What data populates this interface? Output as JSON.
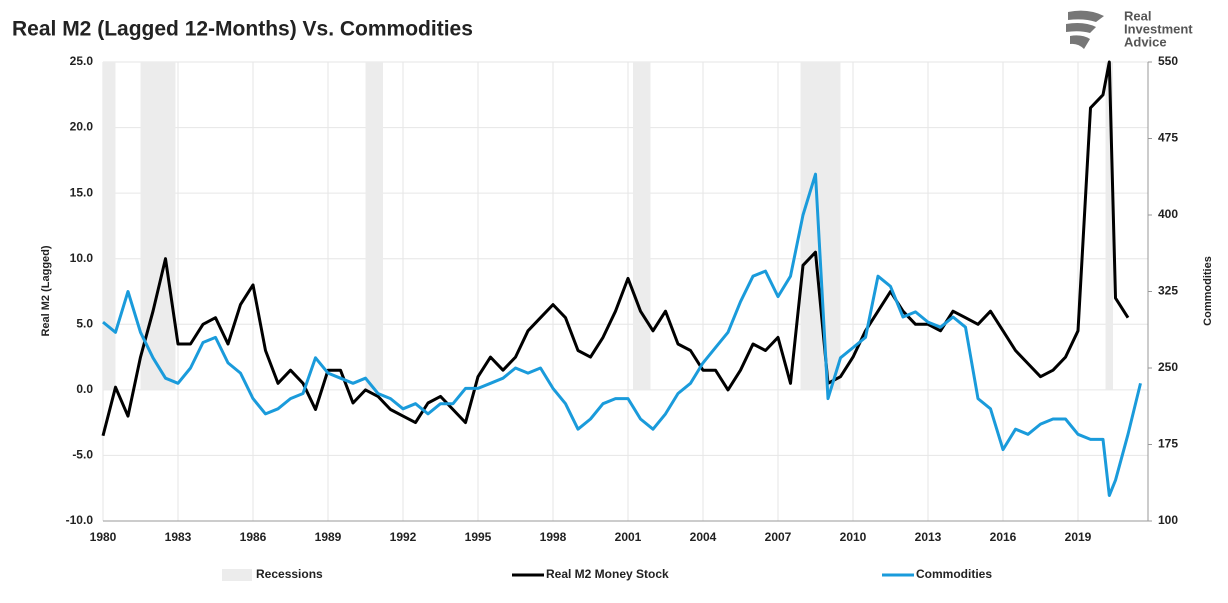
{
  "chart_data": {
    "type": "line",
    "title": "Real M2 (Lagged 12-Months) Vs. Commodities",
    "logo": [
      "Real",
      "Investment",
      "Advice"
    ],
    "ylabel": "Real M2 (Lagged)",
    "y2label": "Commodities",
    "x": [
      1980,
      1980.5,
      1981,
      1981.5,
      1982,
      1982.5,
      1983,
      1983.5,
      1984,
      1984.5,
      1985,
      1985.5,
      1986,
      1986.5,
      1987,
      1987.5,
      1988,
      1988.5,
      1989,
      1989.5,
      1990,
      1990.5,
      1991,
      1991.5,
      1992,
      1992.5,
      1993,
      1993.5,
      1994,
      1994.5,
      1995,
      1995.5,
      1996,
      1996.5,
      1997,
      1997.5,
      1998,
      1998.5,
      1999,
      1999.5,
      2000,
      2000.5,
      2001,
      2001.5,
      2002,
      2002.5,
      2003,
      2003.5,
      2004,
      2004.5,
      2005,
      2005.5,
      2006,
      2006.5,
      2007,
      2007.5,
      2008,
      2008.5,
      2009,
      2009.5,
      2010,
      2010.5,
      2011,
      2011.5,
      2012,
      2012.5,
      2013,
      2013.5,
      2014,
      2014.5,
      2015,
      2015.5,
      2016,
      2016.5,
      2017,
      2017.5,
      2018,
      2018.5,
      2019,
      2019.5,
      2020,
      2020.25,
      2020.5,
      2021,
      2021.5
    ],
    "series": [
      {
        "name": "Real M2 Money Stock",
        "color": "#000000",
        "values": [
          -3.5,
          0.2,
          -2,
          2.5,
          6,
          10,
          3.5,
          3.5,
          5,
          5.5,
          3.5,
          6.5,
          8,
          3,
          0.5,
          1.5,
          0.5,
          -1.5,
          1.5,
          1.5,
          -1,
          0,
          -0.5,
          -1.5,
          -2,
          -2.5,
          -1,
          -0.5,
          -1.5,
          -2.5,
          1,
          2.5,
          1.5,
          2.5,
          4.5,
          5.5,
          6.5,
          5.5,
          3,
          2.5,
          4,
          6,
          8.5,
          6,
          4.5,
          6,
          3.5,
          3,
          1.5,
          1.5,
          0,
          1.5,
          3.5,
          3,
          4,
          0.5,
          9.5,
          10.5,
          0.5,
          1,
          2.5,
          4.5,
          6,
          7.5,
          6,
          5,
          5,
          4.5,
          6,
          5.5,
          5,
          6,
          4.5,
          3,
          2,
          1,
          1.5,
          2.5,
          4.5,
          21.5,
          22.5,
          25,
          7,
          5.5,
          null
        ]
      },
      {
        "name": "Commodities",
        "color": "#1a9bdb",
        "axis": "y2",
        "values": [
          295,
          285,
          325,
          285,
          260,
          240,
          235,
          250,
          275,
          280,
          255,
          245,
          220,
          205,
          210,
          220,
          225,
          260,
          245,
          240,
          235,
          240,
          225,
          220,
          210,
          215,
          205,
          215,
          215,
          230,
          230,
          235,
          240,
          250,
          245,
          250,
          230,
          215,
          190,
          200,
          215,
          220,
          220,
          200,
          190,
          205,
          225,
          235,
          255,
          270,
          285,
          315,
          340,
          345,
          320,
          340,
          400,
          440,
          220,
          260,
          270,
          280,
          340,
          330,
          300,
          305,
          295,
          290,
          300,
          290,
          220,
          210,
          170,
          190,
          185,
          195,
          200,
          200,
          185,
          180,
          180,
          125,
          140,
          185,
          235
        ]
      }
    ],
    "recessions": {
      "name": "Recessions",
      "color": "#ececec",
      "spans": [
        [
          1980,
          1980.5
        ],
        [
          1981.5,
          1982.9
        ],
        [
          1990.5,
          1991.2
        ],
        [
          2001.2,
          2001.9
        ],
        [
          2007.9,
          2009.5
        ],
        [
          2020.1,
          2020.4
        ]
      ]
    },
    "xlim": [
      1980,
      2021.8
    ],
    "xticks": [
      1980,
      1983,
      1986,
      1989,
      1992,
      1995,
      1998,
      2001,
      2004,
      2007,
      2010,
      2013,
      2016,
      2019
    ],
    "ylim": [
      -10,
      25
    ],
    "yticks": [
      {
        "value": -10,
        "label": "-10.0"
      },
      {
        "value": -5,
        "label": "-5.0"
      },
      {
        "value": 0,
        "label": "0.0"
      },
      {
        "value": 5,
        "label": "5.0"
      },
      {
        "value": 10,
        "label": "10.0"
      },
      {
        "value": 15,
        "label": "15.0"
      },
      {
        "value": 20,
        "label": "20.0"
      },
      {
        "value": 25,
        "label": "25.0"
      }
    ],
    "y2lim": [
      100,
      550
    ],
    "y2ticks": [
      100,
      175,
      250,
      325,
      400,
      475,
      550
    ],
    "grid": true,
    "legend": "bottom"
  }
}
